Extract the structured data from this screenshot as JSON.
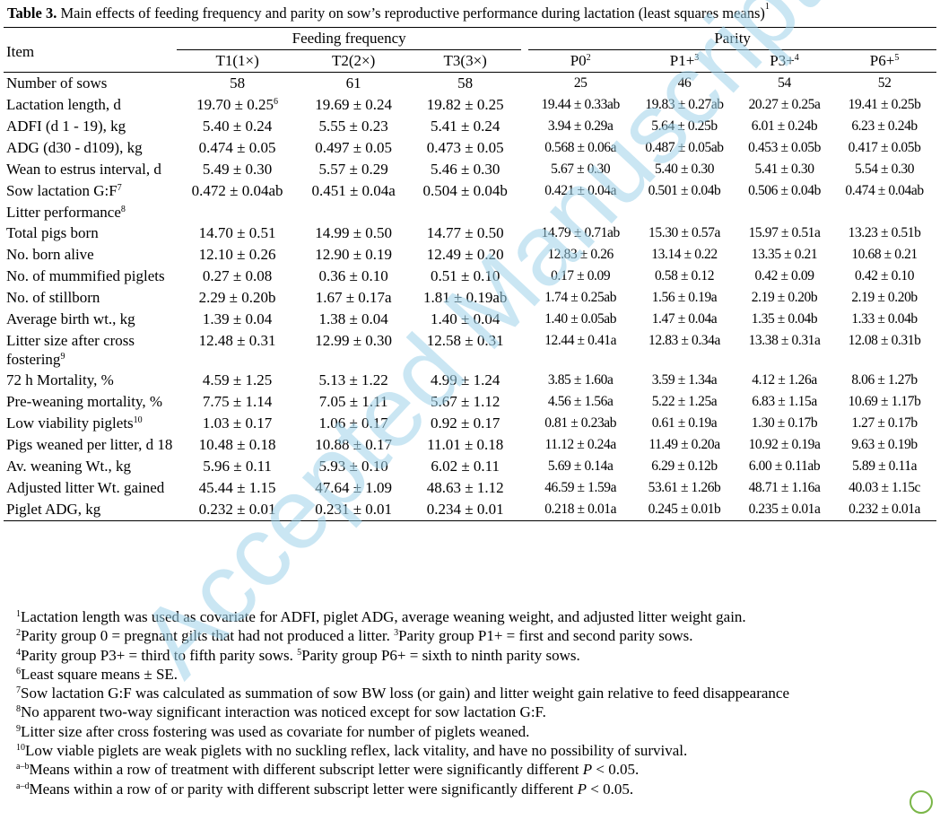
{
  "caption": {
    "label": "Table 3.",
    "text": "Main effects of feeding frequency and parity on sow’s reproductive performance during lactation (least squares means)",
    "sup": "1"
  },
  "watermark": "Accepted Manuscript",
  "header": {
    "item": "Item",
    "groups": [
      "Feeding frequency",
      "Parity"
    ],
    "columns": [
      {
        "text": "T1(1×)"
      },
      {
        "text": "T2(2×)"
      },
      {
        "text": "T3(3×)"
      },
      {
        "text": "P0",
        "sup": "2"
      },
      {
        "text": "P1+",
        "sup": "3"
      },
      {
        "text": "P3+",
        "sup": "4"
      },
      {
        "text": "P6+",
        "sup": "5"
      }
    ]
  },
  "rows": [
    {
      "label": {
        "text": "Number of sows"
      },
      "cells": [
        {
          "text": "58"
        },
        {
          "text": "61"
        },
        {
          "text": "58"
        },
        {
          "text": "25"
        },
        {
          "text": "46"
        },
        {
          "text": "54"
        },
        {
          "text": "52"
        }
      ]
    },
    {
      "label": {
        "text": "Lactation length, d"
      },
      "cells": [
        {
          "text": "19.70 ± 0.25",
          "sup": "6"
        },
        {
          "text": "19.69 ± 0.24"
        },
        {
          "text": "19.82 ± 0.25"
        },
        {
          "text": "19.44 ± 0.33ab"
        },
        {
          "text": "19.83 ± 0.27ab"
        },
        {
          "text": "20.27 ± 0.25a"
        },
        {
          "text": "19.41 ± 0.25b"
        }
      ]
    },
    {
      "label": {
        "text": "ADFI (d 1 - 19), kg"
      },
      "cells": [
        {
          "text": "5.40 ± 0.24"
        },
        {
          "text": "5.55 ± 0.23"
        },
        {
          "text": "5.41 ± 0.24"
        },
        {
          "text": "3.94 ± 0.29a"
        },
        {
          "text": "5.64 ± 0.25b"
        },
        {
          "text": "6.01 ± 0.24b"
        },
        {
          "text": "6.23 ± 0.24b"
        }
      ]
    },
    {
      "label": {
        "text": "ADG (d30 - d109), kg"
      },
      "cells": [
        {
          "text": "0.474 ± 0.05"
        },
        {
          "text": "0.497 ± 0.05"
        },
        {
          "text": "0.473 ± 0.05"
        },
        {
          "text": "0.568 ± 0.06a"
        },
        {
          "text": "0.487 ± 0.05ab"
        },
        {
          "text": "0.453 ± 0.05b"
        },
        {
          "text": "0.417 ± 0.05b"
        }
      ]
    },
    {
      "label": {
        "text": "Wean to estrus interval, d"
      },
      "cells": [
        {
          "text": "5.49 ± 0.30"
        },
        {
          "text": "5.57 ± 0.29"
        },
        {
          "text": "5.46 ± 0.30"
        },
        {
          "text": "5.67 ± 0.30"
        },
        {
          "text": "5.40 ± 0.30"
        },
        {
          "text": "5.41 ± 0.30"
        },
        {
          "text": "5.54 ± 0.30"
        }
      ]
    },
    {
      "label": {
        "text": "Sow lactation G:F",
        "sup": "7"
      },
      "cells": [
        {
          "text": "0.472 ± 0.04ab"
        },
        {
          "text": "0.451 ± 0.04a"
        },
        {
          "text": "0.504 ± 0.04b"
        },
        {
          "text": "0.421 ± 0.04a"
        },
        {
          "text": "0.501 ± 0.04b"
        },
        {
          "text": "0.506 ± 0.04b"
        },
        {
          "text": "0.474 ± 0.04ab"
        }
      ]
    },
    {
      "label": {
        "text": "Litter performance",
        "sup": "8"
      },
      "cells": []
    },
    {
      "label": {
        "text": "Total pigs born"
      },
      "cells": [
        {
          "text": "14.70 ± 0.51"
        },
        {
          "text": "14.99 ± 0.50"
        },
        {
          "text": "14.77 ± 0.50"
        },
        {
          "text": "14.79 ± 0.71ab"
        },
        {
          "text": "15.30 ± 0.57a"
        },
        {
          "text": "15.97 ± 0.51a"
        },
        {
          "text": "13.23 ± 0.51b"
        }
      ]
    },
    {
      "label": {
        "text": "No. born alive"
      },
      "cells": [
        {
          "text": "12.10 ± 0.26"
        },
        {
          "text": "12.90 ± 0.19"
        },
        {
          "text": "12.49 ± 0.20"
        },
        {
          "text": "12.83 ± 0.26"
        },
        {
          "text": "13.14 ± 0.22"
        },
        {
          "text": "13.35 ± 0.21"
        },
        {
          "text": "10.68 ± 0.21"
        }
      ]
    },
    {
      "label": {
        "text": "No. of mummified piglets"
      },
      "cells": [
        {
          "text": "0.27 ± 0.08"
        },
        {
          "text": "0.36 ± 0.10"
        },
        {
          "text": "0.51 ± 0.10"
        },
        {
          "text": "0.17 ± 0.09"
        },
        {
          "text": "0.58 ± 0.12"
        },
        {
          "text": "0.42 ± 0.09"
        },
        {
          "text": "0.42 ± 0.10"
        }
      ]
    },
    {
      "label": {
        "text": "No. of stillborn"
      },
      "cells": [
        {
          "text": "2.29 ± 0.20b"
        },
        {
          "text": "1.67 ± 0.17a"
        },
        {
          "text": "1.81 ± 0.19ab"
        },
        {
          "text": "1.74 ± 0.25ab"
        },
        {
          "text": "1.56 ± 0.19a"
        },
        {
          "text": "2.19 ± 0.20b"
        },
        {
          "text": "2.19 ± 0.20b"
        }
      ]
    },
    {
      "label": {
        "text": "Average birth wt., kg"
      },
      "cells": [
        {
          "text": "1.39 ± 0.04"
        },
        {
          "text": "1.38 ± 0.04"
        },
        {
          "text": "1.40 ± 0.04"
        },
        {
          "text": "1.40 ± 0.05ab"
        },
        {
          "text": "1.47 ± 0.04a"
        },
        {
          "text": "1.35 ± 0.04b"
        },
        {
          "text": "1.33 ± 0.04b"
        }
      ]
    },
    {
      "label": {
        "text": "Litter size after cross fostering",
        "sup": "9"
      },
      "cells": [
        {
          "text": "12.48 ± 0.31"
        },
        {
          "text": "12.99 ± 0.30"
        },
        {
          "text": "12.58 ± 0.31"
        },
        {
          "text": "12.44 ± 0.41a"
        },
        {
          "text": "12.83 ± 0.34a"
        },
        {
          "text": "13.38 ± 0.31a"
        },
        {
          "text": "12.08 ± 0.31b"
        }
      ]
    },
    {
      "label": {
        "text": "72 h Mortality, %"
      },
      "cells": [
        {
          "text": "4.59 ± 1.25"
        },
        {
          "text": "5.13 ± 1.22"
        },
        {
          "text": "4.99 ± 1.24"
        },
        {
          "text": "3.85 ± 1.60a"
        },
        {
          "text": "3.59 ± 1.34a"
        },
        {
          "text": "4.12 ± 1.26a"
        },
        {
          "text": "8.06 ± 1.27b"
        }
      ]
    },
    {
      "label": {
        "text": "Pre-weaning mortality, %"
      },
      "cells": [
        {
          "text": "7.75 ± 1.14"
        },
        {
          "text": "7.05 ± 1.11"
        },
        {
          "text": "5.67 ± 1.12"
        },
        {
          "text": "4.56 ± 1.56a"
        },
        {
          "text": "5.22 ± 1.25a"
        },
        {
          "text": "6.83 ± 1.15a"
        },
        {
          "text": "10.69 ± 1.17b"
        }
      ]
    },
    {
      "label": {
        "text": "Low viability piglets",
        "sup": "10"
      },
      "cells": [
        {
          "text": "1.03 ± 0.17"
        },
        {
          "text": "1.06 ± 0.17"
        },
        {
          "text": "0.92 ± 0.17"
        },
        {
          "text": "0.81 ± 0.23ab"
        },
        {
          "text": "0.61 ± 0.19a"
        },
        {
          "text": "1.30 ± 0.17b"
        },
        {
          "text": "1.27 ± 0.17b"
        }
      ]
    },
    {
      "label": {
        "text": "Pigs weaned per litter, d 18"
      },
      "cells": [
        {
          "text": "10.48 ± 0.18"
        },
        {
          "text": "10.88 ± 0.17"
        },
        {
          "text": "11.01 ± 0.18"
        },
        {
          "text": "11.12 ± 0.24a"
        },
        {
          "text": "11.49 ± 0.20a"
        },
        {
          "text": "10.92 ± 0.19a"
        },
        {
          "text": "9.63 ± 0.19b"
        }
      ]
    },
    {
      "label": {
        "text": "Av. weaning Wt., kg"
      },
      "cells": [
        {
          "text": "5.96 ± 0.11"
        },
        {
          "text": "5.93 ± 0.10"
        },
        {
          "text": "6.02 ± 0.11"
        },
        {
          "text": "5.69 ± 0.14a"
        },
        {
          "text": "6.29 ± 0.12b"
        },
        {
          "text": "6.00 ± 0.11ab"
        },
        {
          "text": "5.89 ± 0.11a"
        }
      ]
    },
    {
      "label": {
        "text": "Adjusted litter Wt. gained"
      },
      "cells": [
        {
          "text": "45.44 ± 1.15"
        },
        {
          "text": "47.64 ± 1.09"
        },
        {
          "text": "48.63 ± 1.12"
        },
        {
          "text": "46.59 ± 1.59a"
        },
        {
          "text": "53.61 ± 1.26b"
        },
        {
          "text": "48.71 ± 1.16a"
        },
        {
          "text": "40.03 ± 1.15c"
        }
      ]
    },
    {
      "label": {
        "text": "Piglet ADG, kg"
      },
      "cells": [
        {
          "text": "0.232 ± 0.01"
        },
        {
          "text": "0.231 ± 0.01"
        },
        {
          "text": "0.234 ± 0.01"
        },
        {
          "text": "0.218 ± 0.01a"
        },
        {
          "text": "0.245 ± 0.01b"
        },
        {
          "text": "0.235 ± 0.01a"
        },
        {
          "text": "0.232 ± 0.01a"
        }
      ]
    }
  ],
  "footnotes": [
    [
      {
        "sup": "1",
        "text": "Lactation length was used as covariate for ADFI, piglet ADG, average weaning weight, and adjusted litter weight gain."
      }
    ],
    [
      {
        "sup": "2",
        "text": "Parity group 0 = pregnant gilts that had not produced a litter. "
      },
      {
        "sup": "3",
        "text": "Parity group P1+ = first and second parity sows."
      }
    ],
    [
      {
        "sup": "4",
        "text": "Parity group P3+ = third to fifth parity sows. "
      },
      {
        "sup": "5",
        "text": "Parity group P6+ = sixth to ninth parity sows."
      }
    ],
    [
      {
        "sup": "6",
        "text": "Least square means ± SE."
      }
    ],
    [
      {
        "sup": "7",
        "text": "Sow lactation G:F was calculated as summation of sow BW loss (or gain) and litter weight gain relative to feed disappearance"
      }
    ],
    [
      {
        "sup": "8",
        "text": "No apparent two-way significant interaction was noticed except for sow lactation G:F."
      }
    ],
    [
      {
        "sup": "9",
        "text": "Litter size after cross fostering was used as covariate for number of piglets weaned."
      }
    ],
    [
      {
        "sup": "10",
        "text": "Low viable piglets are weak piglets with no suckling reflex, lack vitality, and have no possibility of survival."
      }
    ],
    [
      {
        "sup": "a–b",
        "text": "Means within a row of treatment with different subscript letter were significantly different "
      },
      {
        "em": "P"
      },
      {
        "text": " < 0.05."
      }
    ],
    [
      {
        "sup": "a–d",
        "text": "Means within a row of or parity with different subscript letter were significantly different "
      },
      {
        "em": "P"
      },
      {
        "text": " < 0.05."
      }
    ]
  ]
}
